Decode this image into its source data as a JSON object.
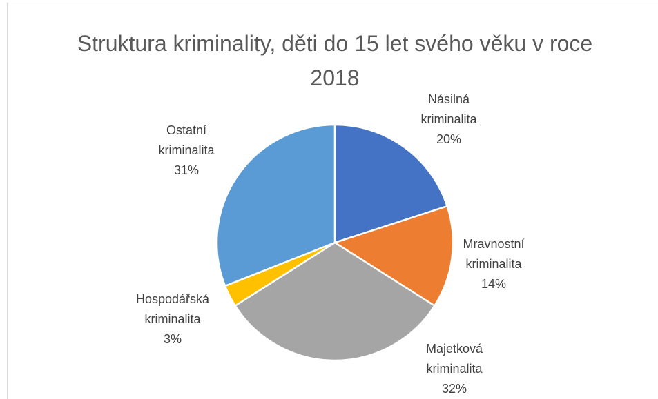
{
  "chart_data": {
    "type": "pie",
    "title": "Struktura kriminality, děti do 15 let svého věku v roce 2018",
    "categories": [
      "Násilná kriminalita",
      "Mravnostní kriminalita",
      "Majetková kriminalita",
      "Hospodářská kriminalita",
      "Ostatní kriminalita"
    ],
    "values": [
      20,
      14,
      32,
      3,
      31
    ],
    "value_labels": [
      "20%",
      "14%",
      "32%",
      "3%",
      "31%"
    ],
    "colors": [
      "#4472c4",
      "#ed7d31",
      "#a5a5a5",
      "#ffc000",
      "#5b9bd5"
    ]
  }
}
